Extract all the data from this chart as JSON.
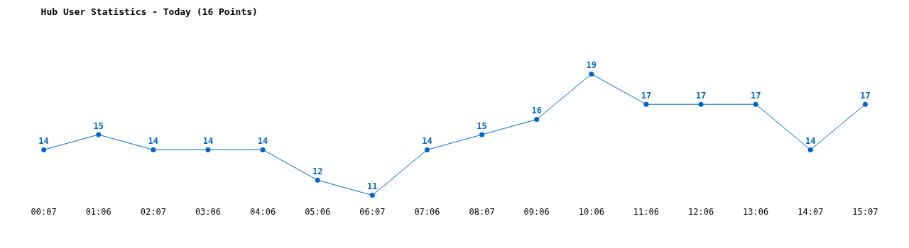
{
  "chart_data": {
    "type": "line",
    "title": "Hub User Statistics - Today (16 Points)",
    "categories": [
      "00:07",
      "01:06",
      "02:07",
      "03:06",
      "04:06",
      "05:06",
      "06:07",
      "07:06",
      "08:07",
      "09:06",
      "10:06",
      "11:06",
      "12:06",
      "13:06",
      "14:07",
      "15:07"
    ],
    "series": [
      {
        "color": "#0066cc",
        "values": [
          14,
          15,
          14,
          14,
          14,
          12,
          11,
          14,
          15,
          16,
          19,
          17,
          17,
          17,
          14,
          17
        ]
      }
    ],
    "data_labels": true,
    "marker": "circle",
    "line_style": "solid",
    "legend": false,
    "tick_labels": "x"
  }
}
